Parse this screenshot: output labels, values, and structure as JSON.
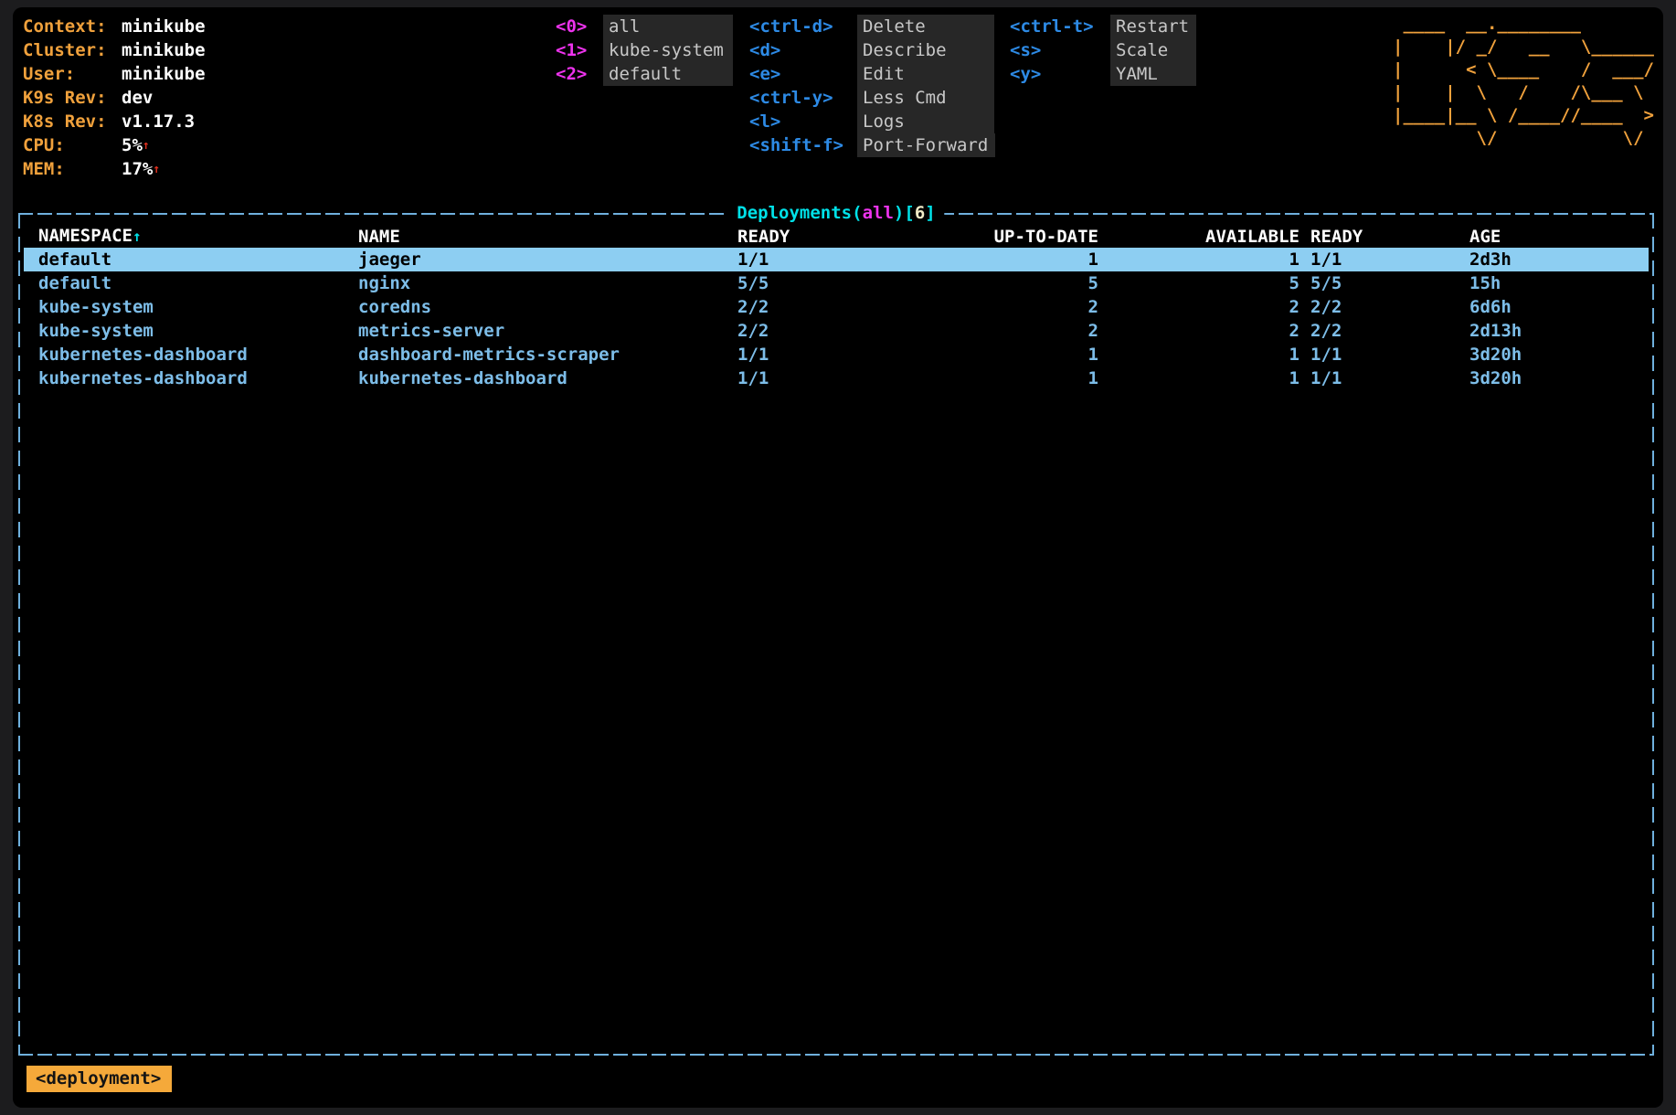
{
  "cluster_info": {
    "rows": [
      {
        "label": "Context:",
        "value": "minikube"
      },
      {
        "label": "Cluster:",
        "value": "minikube"
      },
      {
        "label": "User:",
        "value": "minikube"
      },
      {
        "label": "K9s Rev:",
        "value": "dev"
      },
      {
        "label": "K8s Rev:",
        "value": "v1.17.3"
      },
      {
        "label": "CPU:",
        "value": "5%",
        "trend": "↑"
      },
      {
        "label": "MEM:",
        "value": "17%",
        "trend": "↑"
      }
    ]
  },
  "namespace_hotkeys": [
    {
      "key": "<0>",
      "label": "all"
    },
    {
      "key": "<1>",
      "label": "kube-system"
    },
    {
      "key": "<2>",
      "label": "default"
    }
  ],
  "keybindings_col1": [
    {
      "key": "<ctrl-d>",
      "label": "Delete"
    },
    {
      "key": "<d>",
      "label": "Describe"
    },
    {
      "key": "<e>",
      "label": "Edit"
    },
    {
      "key": "<ctrl-y>",
      "label": "Less Cmd"
    },
    {
      "key": "<l>",
      "label": "Logs"
    },
    {
      "key": "<shift-f>",
      "label": "Port-Forward"
    }
  ],
  "keybindings_col2": [
    {
      "key": "<ctrl-t>",
      "label": "Restart"
    },
    {
      "key": "<s>",
      "label": "Scale"
    },
    {
      "key": "<y>",
      "label": "YAML"
    }
  ],
  "logo_lines": [
    " ____  __.________",
    "|    |/ _/   __   \\______",
    "|      < \\____    /  ___/",
    "|    |  \\   /    /\\___ \\",
    "|____|__ \\ /____//____  >",
    "        \\/            \\/"
  ],
  "table": {
    "title": {
      "resource": "Deployments",
      "paren_open": "(",
      "scope": "all",
      "paren_close": ")",
      "bracket_open": "[",
      "count": "6",
      "bracket_close": "]"
    },
    "sort_arrow": "↑",
    "columns": [
      "NAMESPACE",
      "NAME",
      "READY",
      "UP-TO-DATE",
      "AVAILABLE",
      "READY",
      "AGE"
    ],
    "rows": [
      {
        "namespace": "default",
        "name": "jaeger",
        "ready": "1/1",
        "up_to_date": "1",
        "available": "1",
        "ready2": "1/1",
        "age": "2d3h",
        "selected": true
      },
      {
        "namespace": "default",
        "name": "nginx",
        "ready": "5/5",
        "up_to_date": "5",
        "available": "5",
        "ready2": "5/5",
        "age": "15h",
        "selected": false
      },
      {
        "namespace": "kube-system",
        "name": "coredns",
        "ready": "2/2",
        "up_to_date": "2",
        "available": "2",
        "ready2": "2/2",
        "age": "6d6h",
        "selected": false
      },
      {
        "namespace": "kube-system",
        "name": "metrics-server",
        "ready": "2/2",
        "up_to_date": "2",
        "available": "2",
        "ready2": "2/2",
        "age": "2d13h",
        "selected": false
      },
      {
        "namespace": "kubernetes-dashboard",
        "name": "dashboard-metrics-scraper",
        "ready": "1/1",
        "up_to_date": "1",
        "available": "1",
        "ready2": "1/1",
        "age": "3d20h",
        "selected": false
      },
      {
        "namespace": "kubernetes-dashboard",
        "name": "kubernetes-dashboard",
        "ready": "1/1",
        "up_to_date": "1",
        "available": "1",
        "ready2": "1/1",
        "age": "3d20h",
        "selected": false
      }
    ]
  },
  "crumbs": {
    "current": "<deployment>"
  },
  "colors": {
    "background": "#000000",
    "frame": "#1c1c1e",
    "accent_orange": "#f0a13c",
    "key_blue": "#2d8ae5",
    "hotkey_magenta": "#ee33ee",
    "title_cyan": "#00e1e8",
    "row_blue": "#7dbde8",
    "selected_bg": "#8dcef2",
    "border_blue": "#6fb0dd",
    "trend_red": "#e0301e",
    "crumb_bg": "#f5a93a"
  }
}
